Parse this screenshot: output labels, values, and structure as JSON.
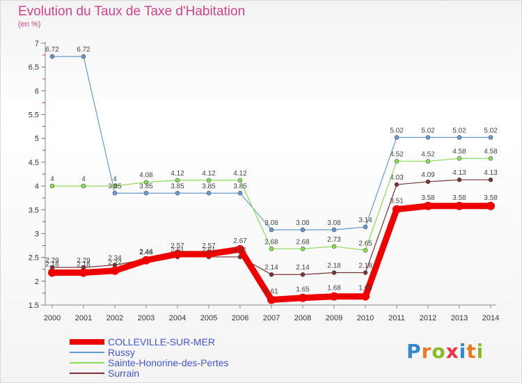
{
  "colors": {
    "COLLEVILLE-SUR-MER": "#ee0000",
    "Russy": "#6699cc",
    "Sainte-Honorine-des-Pertes": "#88dd55",
    "Surrain": "#773333"
  },
  "brand": {
    "text": "Proxiti",
    "p": "P",
    "r": "r",
    "o": "o",
    "x": "x",
    "i": "i",
    "t": "t",
    "i2": "i"
  },
  "chart_data": {
    "type": "line",
    "title": "Evolution du Taux de Taxe d'Habitation",
    "subtitle": "(en %)",
    "x": [
      "2000",
      "2001",
      "2002",
      "2003",
      "2004",
      "2005",
      "2006",
      "2007",
      "2008",
      "2009",
      "2010",
      "2011",
      "2012",
      "2013",
      "2014"
    ],
    "ylim": [
      1.5,
      7
    ],
    "yticks": [
      "1.5",
      "2",
      "2.5",
      "3",
      "3.5",
      "4",
      "4.5",
      "5",
      "5.5",
      "6",
      "6.5",
      "7"
    ],
    "grid": false,
    "legend": "bottom-left",
    "series": [
      {
        "name": "COLLEVILLE-SUR-MER",
        "values": [
          2.18,
          2.18,
          2.22,
          2.44,
          2.57,
          2.57,
          2.67,
          1.61,
          1.65,
          1.68,
          1.68,
          3.51,
          3.58,
          3.58,
          3.58
        ],
        "labels": [
          "2.18",
          "2.18",
          "2.22",
          "2.44",
          "2.57",
          "2.57",
          "2.67",
          "1.61",
          "1.65",
          "1.68",
          "1.68",
          "3.51",
          "3.58",
          "3.58",
          "3.58"
        ]
      },
      {
        "name": "Russy",
        "values": [
          6.72,
          6.72,
          3.85,
          3.85,
          3.85,
          3.85,
          3.85,
          3.08,
          3.08,
          3.08,
          3.14,
          5.02,
          5.02,
          5.02,
          5.02
        ],
        "labels": [
          "6.72",
          "6.72",
          "3.85",
          "3.85",
          "3.85",
          "3.85",
          "3.85",
          "3.08",
          "3.08",
          "3.08",
          "3.14",
          "5.02",
          "5.02",
          "5.02",
          "5.02"
        ]
      },
      {
        "name": "Sainte-Honorine-des-Pertes",
        "values": [
          4,
          4,
          4,
          4.08,
          4.12,
          4.12,
          4.12,
          2.68,
          2.68,
          2.73,
          2.65,
          4.52,
          4.52,
          4.58,
          4.58
        ],
        "labels": [
          "4",
          "4",
          "4",
          "4.08",
          "4.12",
          "4.12",
          "4.12",
          "2.68",
          "2.68",
          "2.73",
          "2.65",
          "4.52",
          "4.52",
          "4.58",
          "4.58"
        ]
      },
      {
        "name": "Surrain",
        "values": [
          2.29,
          2.29,
          2.34,
          2.46,
          2.51,
          2.51,
          2.51,
          2.14,
          2.14,
          2.18,
          2.18,
          4.03,
          4.09,
          4.13,
          4.13
        ],
        "labels": [
          "2.29",
          "2.29",
          "2.34",
          "2.46",
          "2.51",
          "2.51",
          "2.51",
          "2.14",
          "2.14",
          "2.18",
          "2.18",
          "4.03",
          "4.09",
          "4.13",
          "4.13"
        ]
      }
    ]
  }
}
